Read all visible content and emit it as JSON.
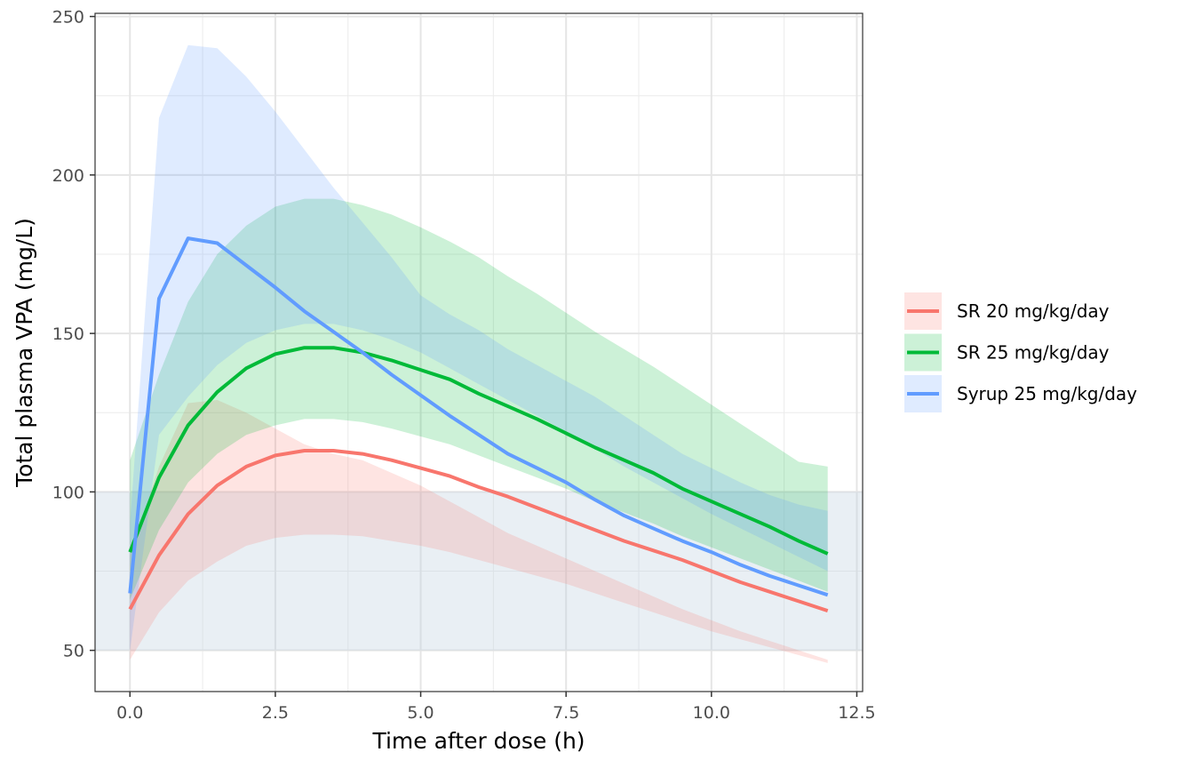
{
  "chart_data": {
    "type": "line",
    "title": "",
    "xlabel": "Time after dose (h)",
    "ylabel": "Total plasma VPA (mg/L)",
    "xlim": [
      -0.6,
      12.6
    ],
    "ylim": [
      37,
      251
    ],
    "x_ticks": [
      0.0,
      2.5,
      5.0,
      7.5,
      10.0,
      12.5
    ],
    "x_tick_labels": [
      "0.0",
      "2.5",
      "5.0",
      "7.5",
      "10.0",
      "12.5"
    ],
    "y_ticks": [
      50,
      100,
      150,
      200,
      250
    ],
    "y_tick_labels": [
      "50",
      "100",
      "150",
      "200",
      "250"
    ],
    "grid": true,
    "legend_position": "right",
    "reference_band": {
      "ymin": 50,
      "ymax": 100,
      "color": "#bfd0e0"
    },
    "x": [
      0,
      0.5,
      1,
      1.5,
      2,
      2.5,
      3,
      3.5,
      4,
      4.5,
      5,
      5.5,
      6,
      6.5,
      7,
      7.5,
      8,
      8.5,
      9,
      9.5,
      10,
      10.5,
      11,
      11.5,
      12
    ],
    "series": [
      {
        "name": "SR 20 mg/kg/day",
        "color": "#F8766D",
        "median": [
          63,
          80,
          93,
          102,
          108,
          111.5,
          113,
          113,
          112,
          110,
          107.5,
          105,
          101.5,
          98.5,
          95,
          91.5,
          88,
          84.5,
          81.5,
          78.5,
          75,
          71.5,
          68.5,
          65.5,
          62.5
        ],
        "lower": [
          47,
          62,
          72,
          78,
          83,
          85.5,
          86.5,
          86.5,
          86,
          84.5,
          83,
          81,
          78.5,
          76,
          73.5,
          71,
          68,
          65,
          62,
          59,
          56,
          53.5,
          51,
          48.5,
          46
        ],
        "upper": [
          80,
          108,
          128,
          129,
          125,
          120,
          115,
          112,
          110,
          106,
          102,
          97,
          92,
          87,
          83,
          79,
          75,
          71,
          67,
          63,
          59.5,
          56,
          53,
          50,
          47
        ]
      },
      {
        "name": "SR 25 mg/kg/day",
        "color": "#00BA38",
        "median": [
          81,
          104.5,
          121,
          131.5,
          139,
          143.5,
          145.5,
          145.5,
          144,
          141.5,
          138.5,
          135.5,
          131,
          127,
          123,
          118.5,
          114,
          110,
          106,
          101,
          97,
          93,
          89,
          84.5,
          80.5
        ],
        "lower": [
          66,
          88,
          103,
          112,
          118,
          121,
          123,
          123,
          122,
          120,
          117.5,
          115,
          111.5,
          108,
          104.5,
          101,
          97,
          93.5,
          90,
          86,
          82.5,
          79,
          75.5,
          72,
          68.5
        ],
        "upper": [
          110,
          137,
          160,
          175,
          184,
          190,
          192.5,
          192.5,
          190.5,
          187.5,
          183.5,
          179,
          174,
          168,
          162.5,
          156.5,
          150.5,
          145,
          139.5,
          133.5,
          127.5,
          121.5,
          115.5,
          109.5,
          108
        ]
      },
      {
        "name": "Syrup 25 mg/kg/day",
        "color": "#619CFF",
        "median": [
          68,
          161,
          180,
          178.5,
          171.5,
          164.5,
          157,
          150.5,
          144,
          137,
          130.5,
          124,
          118,
          112,
          107.5,
          103,
          97.5,
          92.5,
          88.5,
          84.5,
          81,
          77,
          73.5,
          70.5,
          67.5
        ],
        "lower": [
          50,
          118,
          130,
          140,
          147,
          151,
          153,
          153,
          151,
          148,
          144,
          139,
          134,
          129,
          124,
          119,
          113.5,
          108,
          103,
          98,
          93,
          88.5,
          84,
          79.5,
          75
        ],
        "upper": [
          90,
          218,
          241,
          240,
          231,
          220,
          208,
          196,
          185,
          174,
          162,
          156,
          151,
          145,
          140,
          135,
          130,
          124,
          118,
          112,
          107.5,
          103,
          99,
          96,
          94
        ]
      }
    ]
  }
}
